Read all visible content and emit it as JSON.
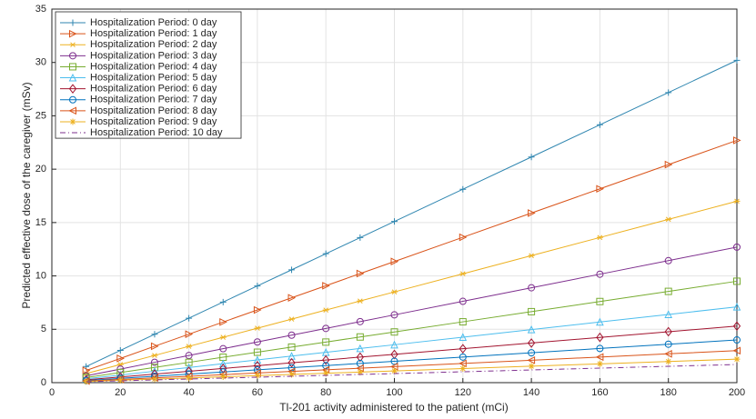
{
  "chart_data": {
    "type": "line",
    "xlabel": "Tl-201 activity administered to the patient (mCi)",
    "ylabel": "Predicted effective dose of the caregiver (mSv)",
    "x": [
      10,
      20,
      30,
      40,
      50,
      60,
      70,
      80,
      90,
      100,
      120,
      140,
      160,
      180,
      200
    ],
    "xlim": [
      0,
      200
    ],
    "xticks": [
      0,
      20,
      40,
      60,
      80,
      100,
      120,
      140,
      160,
      180,
      200
    ],
    "ylim": [
      0,
      35
    ],
    "yticks": [
      0,
      5,
      10,
      15,
      20,
      25,
      30,
      35
    ],
    "grid": true,
    "legend": "upper-left",
    "series": [
      {
        "name": "Hospitalization Period: 0 day",
        "color": "#2f86b0",
        "marker": "plus",
        "linestyle": "solid",
        "values": [
          1.51,
          3.02,
          4.53,
          6.04,
          7.55,
          9.06,
          10.57,
          12.08,
          13.59,
          15.1,
          18.12,
          21.14,
          24.16,
          27.18,
          30.2
        ]
      },
      {
        "name": "Hospitalization Period: 1 day",
        "color": "#d95319",
        "marker": "triangle-right",
        "linestyle": "solid",
        "values": [
          1.14,
          2.27,
          3.41,
          4.54,
          5.68,
          6.81,
          7.95,
          9.08,
          10.22,
          11.35,
          13.62,
          15.89,
          18.16,
          20.43,
          22.7
        ]
      },
      {
        "name": "Hospitalization Period: 2 day",
        "color": "#edb120",
        "marker": "star",
        "linestyle": "solid",
        "values": [
          0.85,
          1.7,
          2.55,
          3.4,
          4.25,
          5.1,
          5.95,
          6.8,
          7.65,
          8.5,
          10.2,
          11.9,
          13.6,
          15.3,
          17.0
        ]
      },
      {
        "name": "Hospitalization Period: 3 day",
        "color": "#7e2f8e",
        "marker": "circle",
        "linestyle": "solid",
        "values": [
          0.64,
          1.27,
          1.91,
          2.54,
          3.18,
          3.81,
          4.45,
          5.08,
          5.72,
          6.35,
          7.62,
          8.89,
          10.16,
          11.43,
          12.7
        ]
      },
      {
        "name": "Hospitalization Period: 4 day",
        "color": "#77ac30",
        "marker": "square",
        "linestyle": "solid",
        "values": [
          0.48,
          0.95,
          1.43,
          1.9,
          2.38,
          2.85,
          3.33,
          3.8,
          4.28,
          4.75,
          5.7,
          6.65,
          7.6,
          8.55,
          9.5
        ]
      },
      {
        "name": "Hospitalization Period: 5 day",
        "color": "#4dbeee",
        "marker": "triangle-up",
        "linestyle": "solid",
        "values": [
          0.36,
          0.71,
          1.07,
          1.42,
          1.78,
          2.13,
          2.49,
          2.84,
          3.2,
          3.55,
          4.26,
          4.97,
          5.68,
          6.39,
          7.1
        ]
      },
      {
        "name": "Hospitalization Period: 6 day",
        "color": "#a2142f",
        "marker": "diamond",
        "linestyle": "solid",
        "values": [
          0.27,
          0.53,
          0.8,
          1.06,
          1.33,
          1.59,
          1.86,
          2.12,
          2.39,
          2.65,
          3.18,
          3.71,
          4.24,
          4.77,
          5.3
        ]
      },
      {
        "name": "Hospitalization Period: 7 day",
        "color": "#0072bd",
        "marker": "circle",
        "linestyle": "solid",
        "values": [
          0.2,
          0.4,
          0.6,
          0.8,
          1.0,
          1.2,
          1.4,
          1.6,
          1.8,
          2.0,
          2.4,
          2.8,
          3.2,
          3.6,
          4.0
        ]
      },
      {
        "name": "Hospitalization Period: 8 day",
        "color": "#d95319",
        "marker": "triangle-left",
        "linestyle": "solid",
        "values": [
          0.15,
          0.3,
          0.45,
          0.6,
          0.75,
          0.9,
          1.05,
          1.2,
          1.35,
          1.5,
          1.8,
          2.1,
          2.4,
          2.7,
          3.0
        ]
      },
      {
        "name": "Hospitalization Period: 9 day",
        "color": "#edb120",
        "marker": "asterisk",
        "linestyle": "solid",
        "values": [
          0.11,
          0.22,
          0.33,
          0.44,
          0.55,
          0.66,
          0.77,
          0.88,
          0.99,
          1.1,
          1.32,
          1.54,
          1.76,
          1.98,
          2.2
        ]
      },
      {
        "name": "Hospitalization Period: 10 day",
        "color": "#7e2f8e",
        "marker": "none",
        "linestyle": "dashdot",
        "values": [
          0.09,
          0.17,
          0.26,
          0.34,
          0.43,
          0.51,
          0.6,
          0.68,
          0.77,
          0.85,
          1.02,
          1.19,
          1.36,
          1.53,
          1.7
        ]
      }
    ]
  }
}
